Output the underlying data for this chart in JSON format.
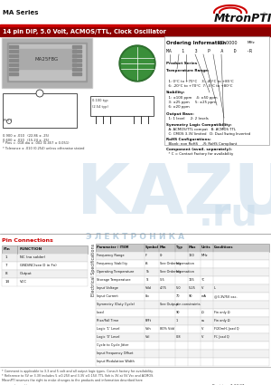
{
  "title_series": "MA Series",
  "title_main": "14 pin DIP, 5.0 Volt, ACMOS/TTL, Clock Oscillator",
  "bg_color": "#ffffff",
  "red_accent": "#cc0000",
  "pin_connections": {
    "rows": [
      [
        "1",
        "NC (no solder)"
      ],
      [
        "7",
        "GND/NC(see D in Fn)"
      ],
      [
        "8",
        "Output"
      ],
      [
        "14",
        "VCC"
      ]
    ]
  },
  "elec_rows": [
    [
      "Frequency Range",
      "F",
      "0r",
      "",
      "160",
      "MHz",
      ""
    ],
    [
      "Frequency Stability",
      "fS",
      "See Ordering",
      "Information",
      "",
      "",
      ""
    ],
    [
      "Operating Temperature",
      "To",
      "See Ordering",
      "Information",
      "",
      "",
      ""
    ],
    [
      "Storage Temperature",
      "Ts",
      "-55",
      "",
      "125",
      "°C",
      ""
    ],
    [
      "Input Voltage",
      "Vdd",
      "4.75",
      "5.0",
      "5.25",
      "V",
      "L"
    ],
    [
      "Input Current",
      "Idc",
      "",
      "70",
      "90",
      "mA",
      "@3.3V/5V osc."
    ],
    [
      "Symmetry (Duty Cycle)",
      "",
      "See Output",
      "pin constraints",
      "",
      "",
      ""
    ],
    [
      "Load",
      "",
      "",
      "90",
      "",
      "Ω",
      "Fin only Ω"
    ],
    [
      "Rise/Fall Time",
      "R/Ft",
      "",
      "1",
      "",
      "ns",
      "Fin only Ω"
    ],
    [
      "Logic '1' Level",
      "Voh",
      "80% Vdd",
      "",
      "",
      "V",
      "F/20mH; Joad Q"
    ],
    [
      "Logic '0' Level",
      "Vol",
      "",
      "0.8",
      "",
      "V",
      "F/; Josd Q"
    ],
    [
      "Cycle to Cycle Jitter",
      "",
      "",
      "",
      "",
      "",
      ""
    ],
    [
      "Input Frequency Offset",
      "",
      "",
      "",
      "",
      "",
      ""
    ],
    [
      "Input Modulation Width",
      "",
      "",
      "",
      "",
      "",
      ""
    ]
  ],
  "footer_text": "MtronPTI reserves the right to make changes to the products and information described herein without notice. Our liability is limited to our maximum unit price. Visit www.mtronpti.com for complete offering and detailed documentation.",
  "revision": "Revision: 7.27.07",
  "website": "www.mtronpti.com"
}
